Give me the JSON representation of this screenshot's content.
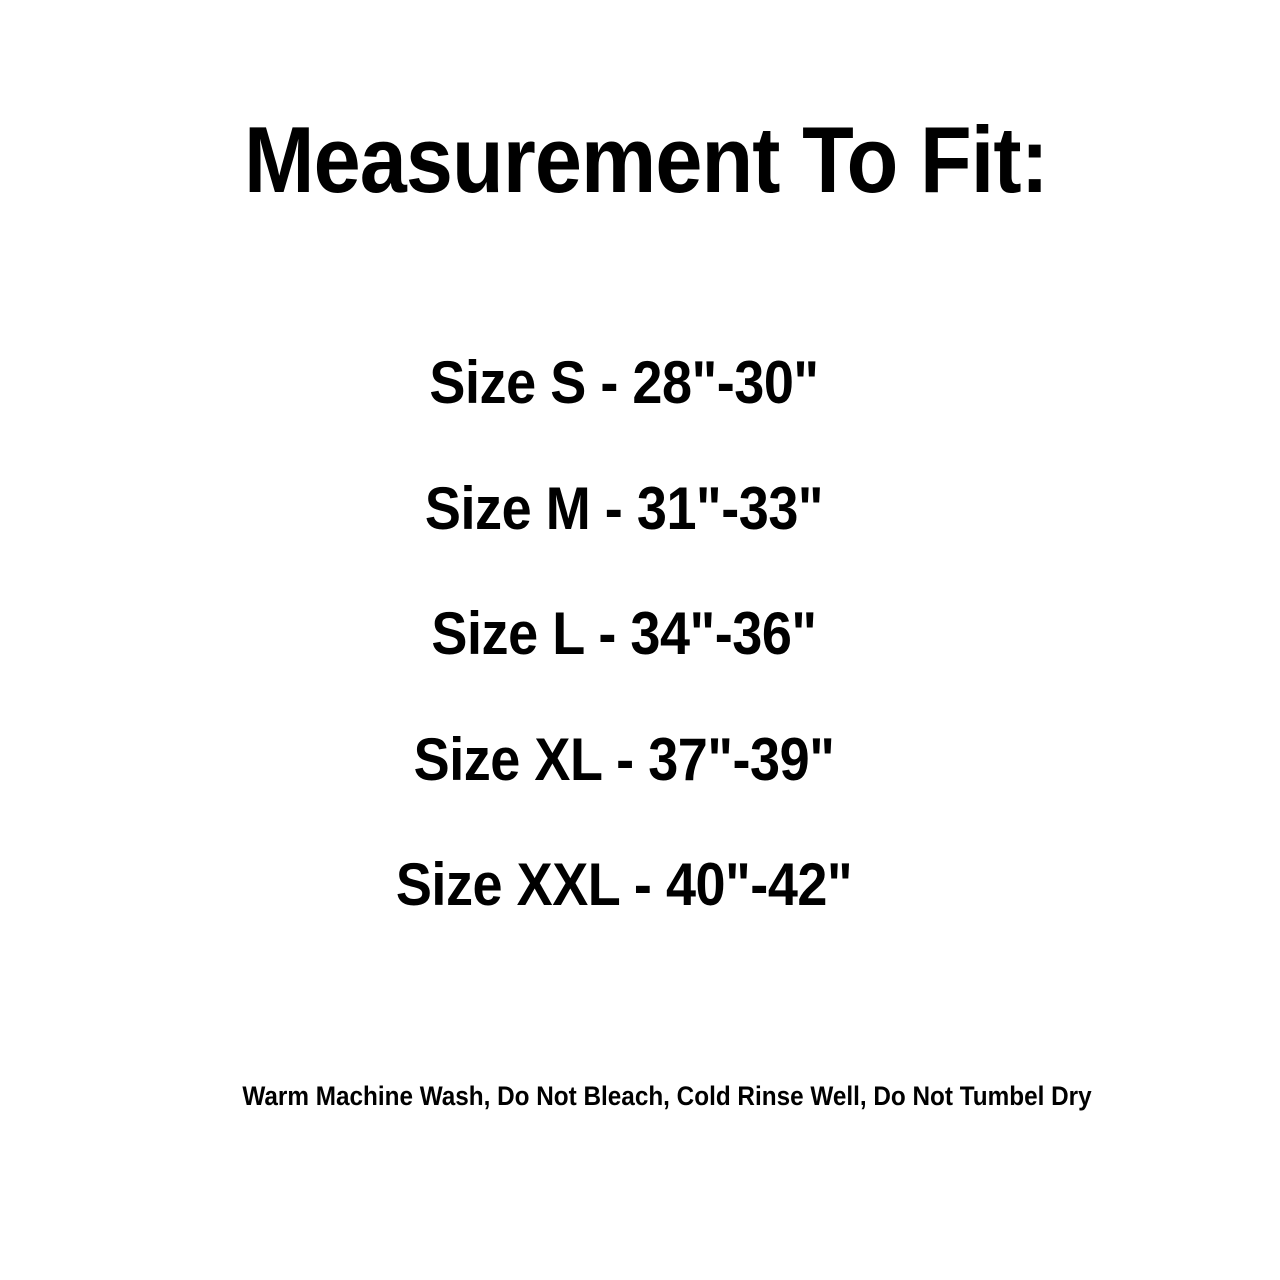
{
  "title": "Measurement To Fit:",
  "sizes": [
    {
      "size": "S",
      "range": "28\"-30\"",
      "label": "Size S - 28\"-30\""
    },
    {
      "size": "M",
      "range": "31\"-33\"",
      "label": "Size M - 31\"-33\""
    },
    {
      "size": "L",
      "range": "34\"-36\"",
      "label": "Size L - 34\"-36\""
    },
    {
      "size": "XL",
      "range": "37\"-39\"",
      "label": "Size XL - 37\"-39\""
    },
    {
      "size": "XXL",
      "range": "40\"-42\"",
      "label": "Size XXL - 40\"-42\""
    }
  ],
  "care_note": "Warm Machine Wash, Do Not Bleach, Cold Rinse Well, Do Not Tumbel Dry",
  "colors": {
    "background": "#ffffff",
    "text": "#000000"
  }
}
